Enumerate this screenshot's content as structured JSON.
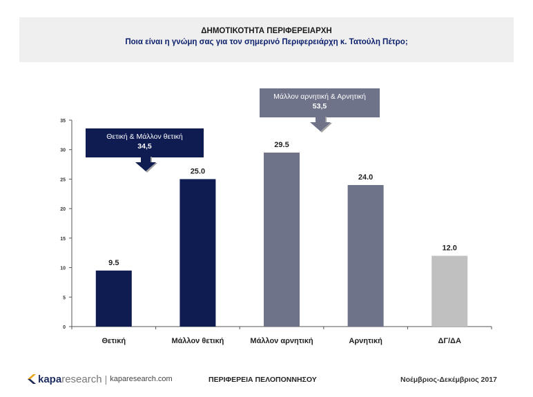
{
  "header": {
    "title": "ΔΗΜΟΤΙΚΟΤΗΤΑ ΠΕΡΙΦΕΡΕΙΑΡΧΗ",
    "subtitle": "Ποια είναι η γνώμη σας για τον σημερινό Περιφερειάρχη κ. Τατούλη Πέτρο;"
  },
  "chart_data": {
    "type": "bar",
    "title": "ΔΗΜΟΤΙΚΟΤΗΤΑ ΠΕΡΙΦΕΡΕΙΑΡΧΗ",
    "subtitle": "Ποια είναι η γνώμη σας για τον σημερινό Περιφερειάρχη κ. Τατούλη Πέτρο;",
    "categories": [
      "Θετική",
      "Μάλλον θετική",
      "Μάλλον αρνητική",
      "Αρνητική",
      "ΔΓ/ΔΑ"
    ],
    "values": [
      9.5,
      25.0,
      29.5,
      24.0,
      12.0
    ],
    "value_labels": [
      "9.5",
      "25.0",
      "29.5",
      "24.0",
      "12.0"
    ],
    "bar_colors": [
      "#0e1c52",
      "#0e1c52",
      "#6e7389",
      "#6e7389",
      "#c0c0c0"
    ],
    "ylim": [
      0,
      35
    ],
    "yticks": [
      0,
      5,
      10,
      15,
      20,
      25,
      30,
      35
    ],
    "xlabel": "",
    "ylabel": "",
    "grid": false,
    "annotations": [
      {
        "label": "Θετική & Μάλλον θετική",
        "value": "34,5"
      },
      {
        "label": "Μάλλον αρνητική & Αρνητική",
        "value": "53,5"
      }
    ]
  },
  "footer": {
    "brand_a": "kapa",
    "brand_b": "research",
    "separator": "|",
    "url": "kaparesearch.com",
    "region": "ΠΕΡΙΦΕΡΕΙΑ ΠΕΛΟΠΟΝΝΗΣΟΥ",
    "date": "Νοέμβριος-Δεκέμβριος 2017"
  },
  "colors": {
    "positive": "#0e1c52",
    "negative": "#6e7389",
    "neutral": "#c0c0c0",
    "header_band": "#efefef"
  }
}
